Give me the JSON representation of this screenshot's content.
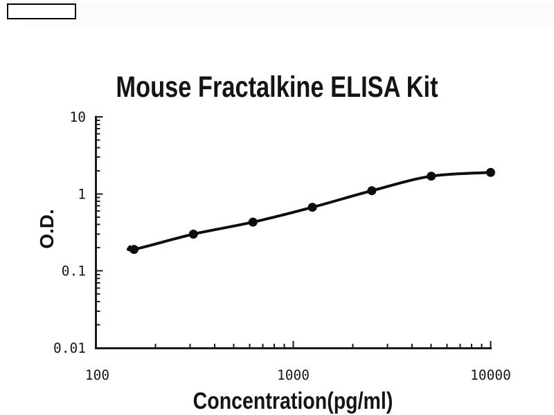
{
  "page": {
    "background": "#ffffff",
    "kind": "standard curve product image"
  },
  "chart_data": {
    "type": "line",
    "title": "Mouse Fractalkine ELISA Kit",
    "xlabel": "Concentration(pg/ml)",
    "ylabel": "O.D.",
    "x_scale": "log",
    "y_scale": "log",
    "xlim": [
      100,
      10000
    ],
    "ylim": [
      0.01,
      10
    ],
    "x_tick_values": [
      100,
      1000,
      10000
    ],
    "x_tick_labels": [
      "100",
      "1000",
      "10000"
    ],
    "y_tick_values": [
      10,
      1,
      0.1,
      0.01
    ],
    "y_tick_labels": [
      "10",
      "1",
      "0.1",
      "0.01"
    ],
    "minor_ticks": "log-decade-2-to-9",
    "grid": false,
    "legend": "none",
    "marker": "filled-circle",
    "colors": {
      "curve": "#0d0d0d",
      "axis": "#1a1a1a",
      "tick_text": "#161616",
      "title_text": "#141414",
      "background": "#ffffff"
    },
    "series": [
      {
        "name": "standard-curve",
        "x": [
          156,
          312,
          625,
          1250,
          2500,
          5000,
          10000
        ],
        "y": [
          0.19,
          0.3,
          0.43,
          0.67,
          1.1,
          1.7,
          1.9
        ]
      }
    ]
  }
}
